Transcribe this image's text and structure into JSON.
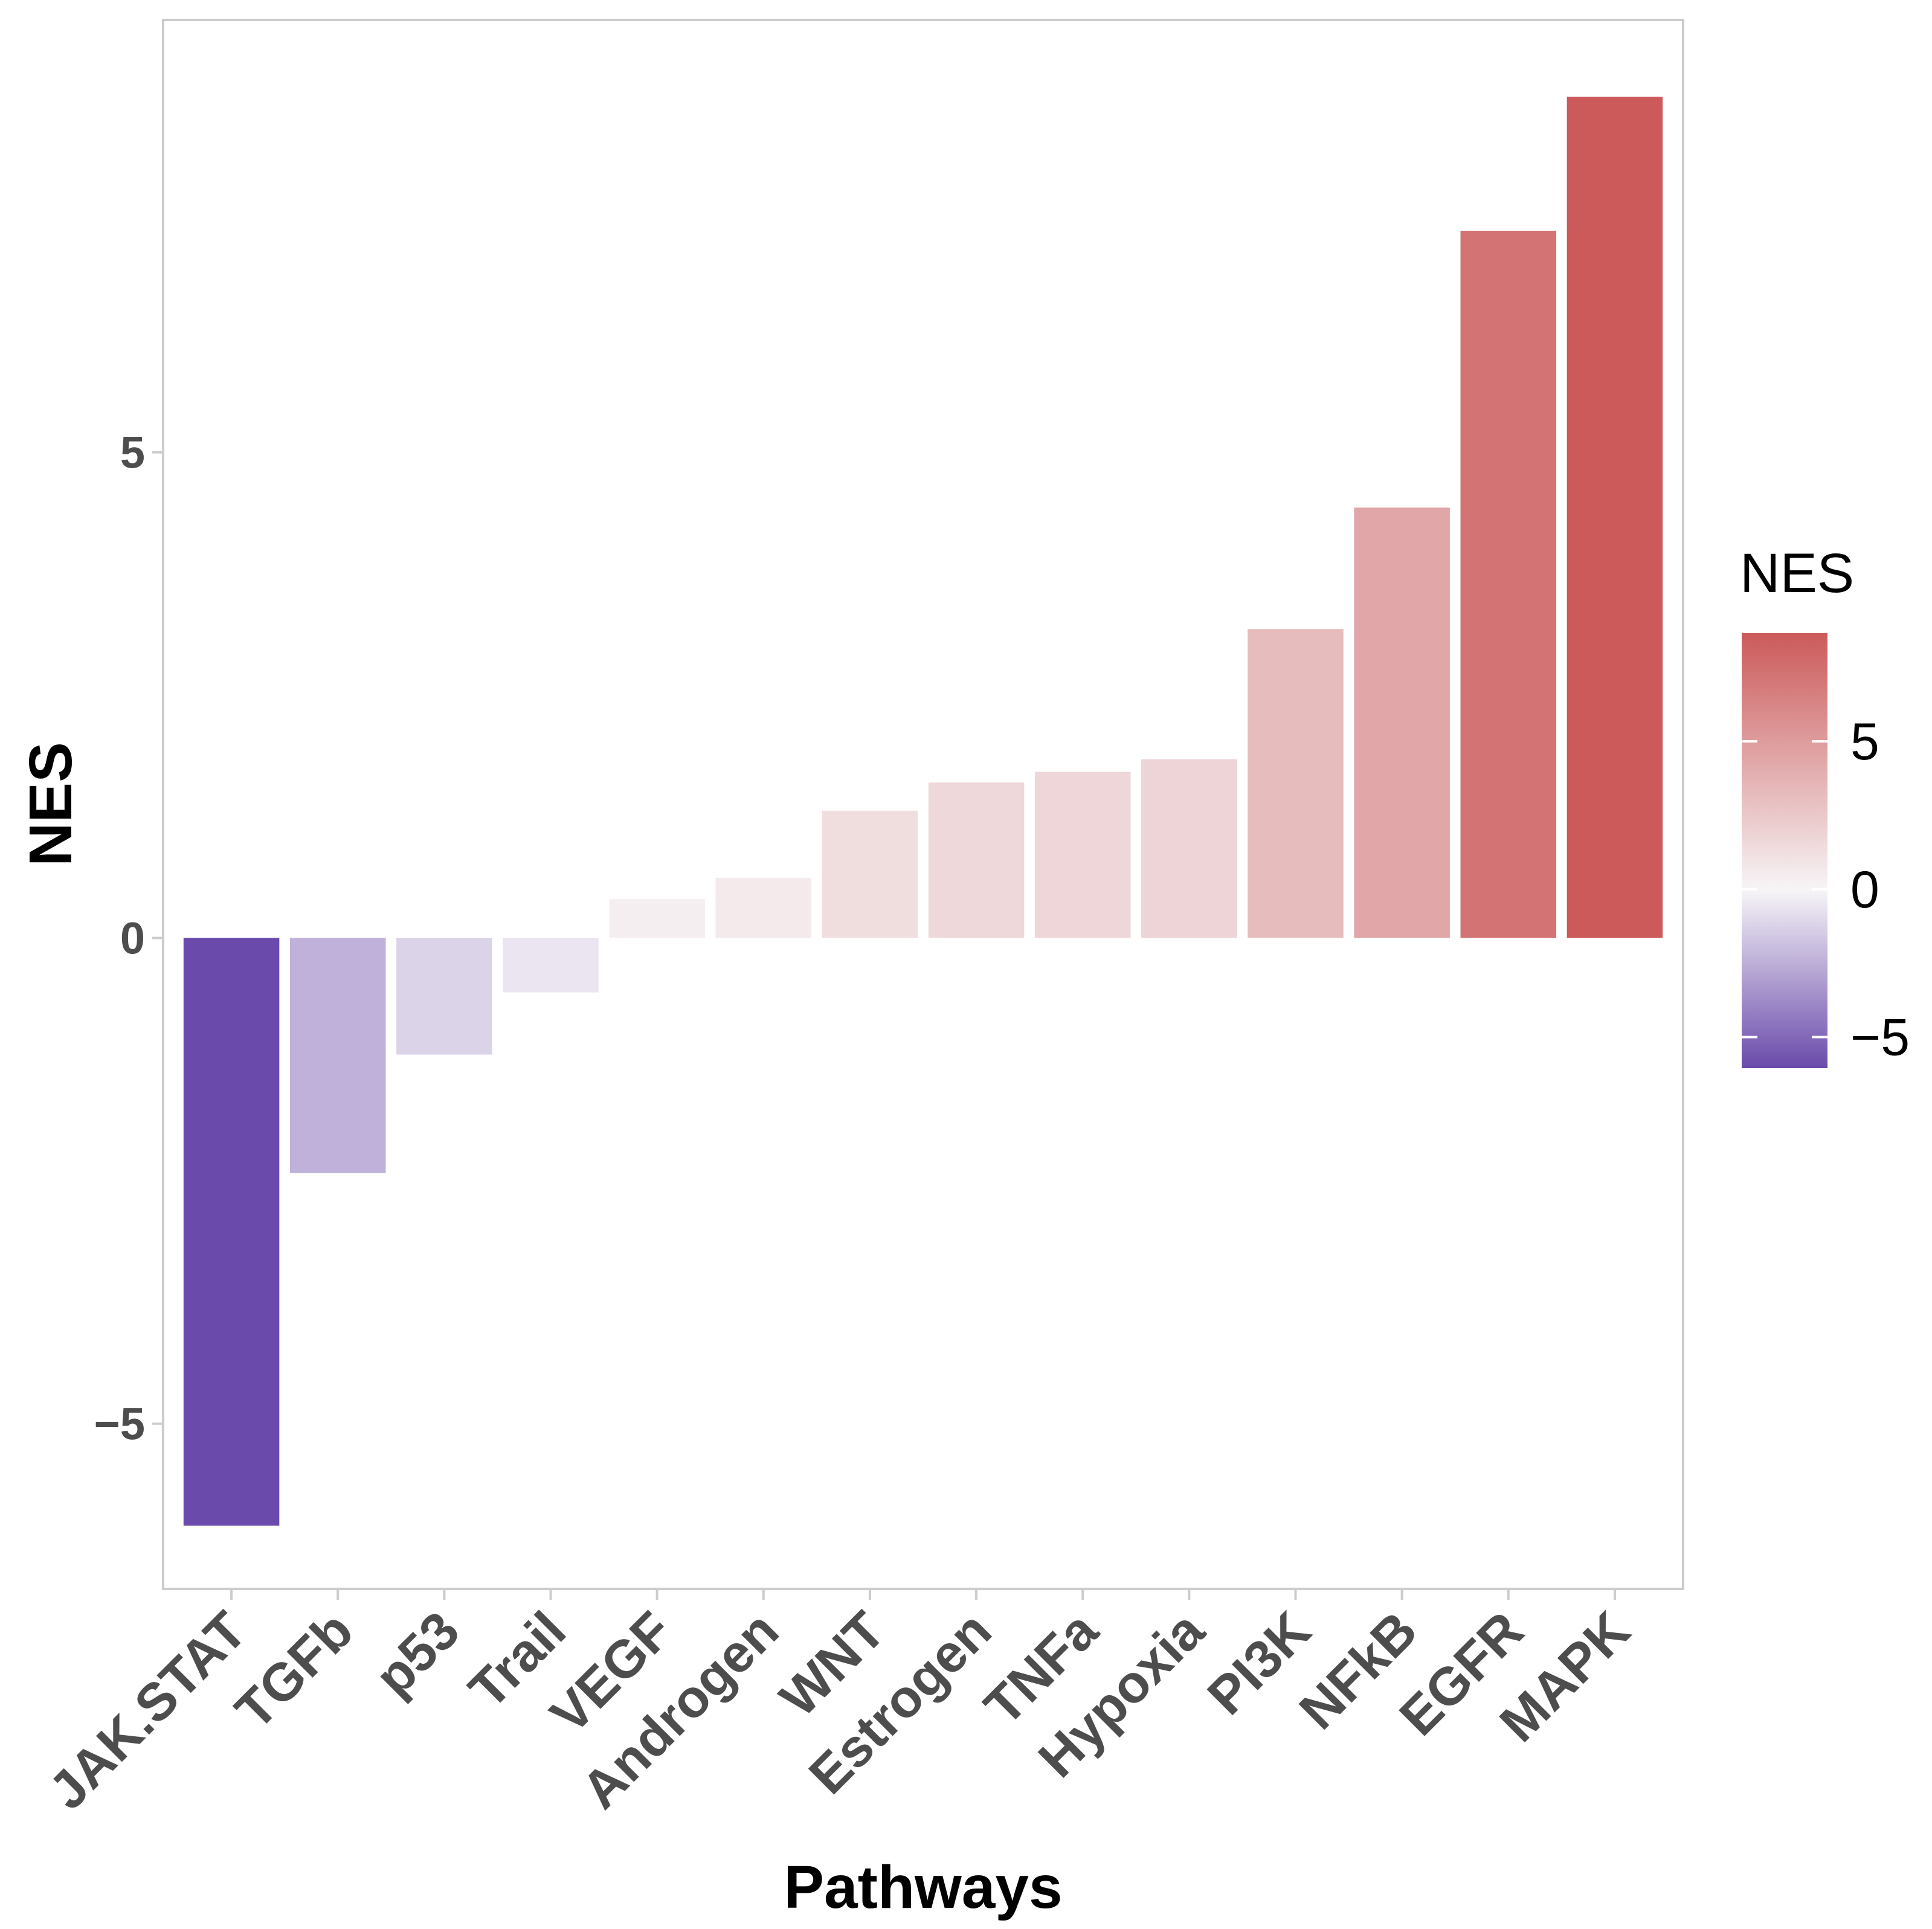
{
  "chart_data": {
    "type": "bar",
    "title": "",
    "xlabel": "Pathways",
    "ylabel": "NES",
    "categories": [
      "JAK.STAT",
      "TGFb",
      "p53",
      "Trail",
      "VEGF",
      "Androgen",
      "WNT",
      "Estrogen",
      "TNFa",
      "Hypoxia",
      "PI3K",
      "NFkB",
      "EGFR",
      "MAPK"
    ],
    "values": [
      -6.05,
      -2.42,
      -1.2,
      -0.56,
      0.4,
      0.62,
      1.31,
      1.6,
      1.71,
      1.84,
      3.18,
      4.43,
      7.28,
      8.66
    ],
    "ylim": [
      -6.7,
      9.45
    ],
    "yticks": [
      -5,
      0,
      5
    ],
    "ytick_labels": [
      "−5",
      "0",
      "5"
    ],
    "grid": false,
    "legend": {
      "title": "NES",
      "position": "right",
      "scale_min": -6.05,
      "scale_max": 8.66,
      "ticks": [
        -5,
        0,
        5
      ],
      "tick_labels": [
        "−5",
        "0",
        "5"
      ]
    },
    "colors": {
      "low": "#6a4aab",
      "mid": "#f7f5f7",
      "high": "#cc5a5a",
      "panel_border": "#cccccc",
      "tick_text": "#4d4d4d"
    }
  }
}
